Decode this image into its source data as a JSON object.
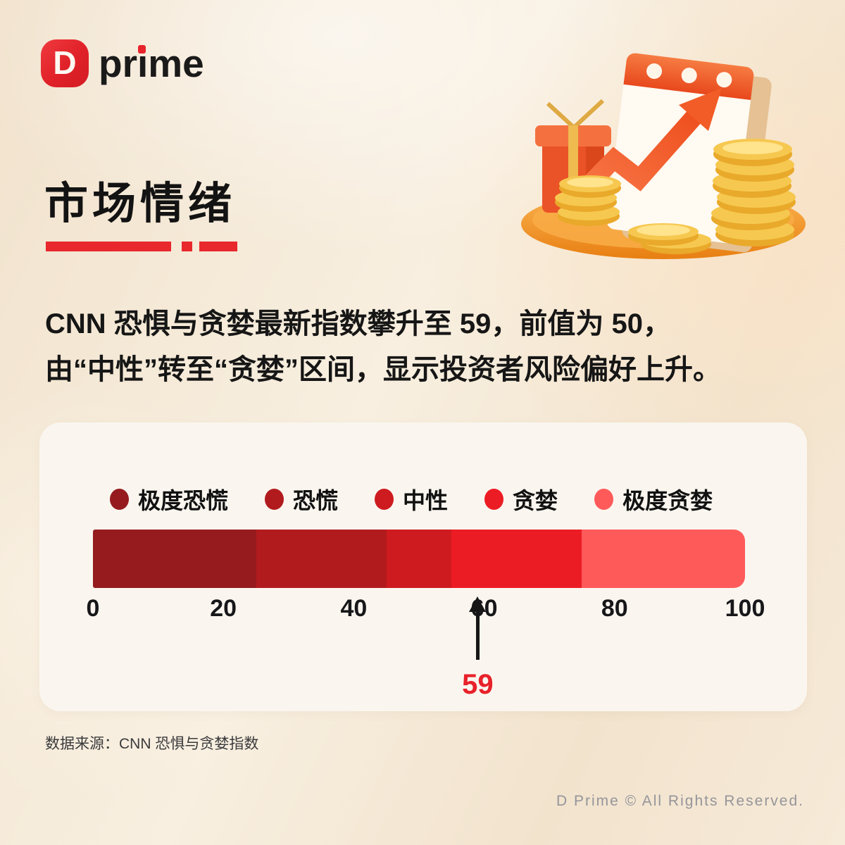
{
  "brand": {
    "icon_letter": "D",
    "wordmark_pre": "pr",
    "wordmark_i": "i",
    "wordmark_post": "me"
  },
  "header": {
    "title": "市场情绪"
  },
  "intro": {
    "line1": "CNN 恐惧与贪婪最新指数攀升至 59，前值为 50，",
    "line2": "由“中性”转至“贪婪”区间，显示投资者风险偏好上升。"
  },
  "chart_data": {
    "type": "bar",
    "variant": "horizontal-sentiment-gauge",
    "title": "CNN 恐惧与贪婪指数",
    "xlim": [
      0,
      100
    ],
    "ticks": [
      0,
      20,
      40,
      60,
      80,
      100
    ],
    "legend_position": "top",
    "segments": [
      {
        "label": "极度恐慌",
        "from": 0,
        "to": 25,
        "color": "#951B1E"
      },
      {
        "label": "恐慌",
        "from": 25,
        "to": 45,
        "color": "#B21B1E"
      },
      {
        "label": "中性",
        "from": 45,
        "to": 55,
        "color": "#CE1B1F"
      },
      {
        "label": "贪婪",
        "from": 55,
        "to": 75,
        "color": "#EC1C24"
      },
      {
        "label": "极度贪婪",
        "from": 75,
        "to": 100,
        "color": "#FF5A5A"
      }
    ],
    "marker": {
      "value": 59,
      "label": "59",
      "color": "#E8212A"
    }
  },
  "source": {
    "text": "数据来源：CNN 恐惧与贪婪指数"
  },
  "footer": {
    "copyright": "D Prime © All Rights Reserved."
  },
  "colors": {
    "accent_red": "#E8232B",
    "background": "#F3E6D1",
    "card": "#FAF6EF",
    "text_primary": "#141414",
    "footer_text": "#95959B",
    "illustration_orange": "#F2672F",
    "illustration_gold": "#F2BC44"
  }
}
